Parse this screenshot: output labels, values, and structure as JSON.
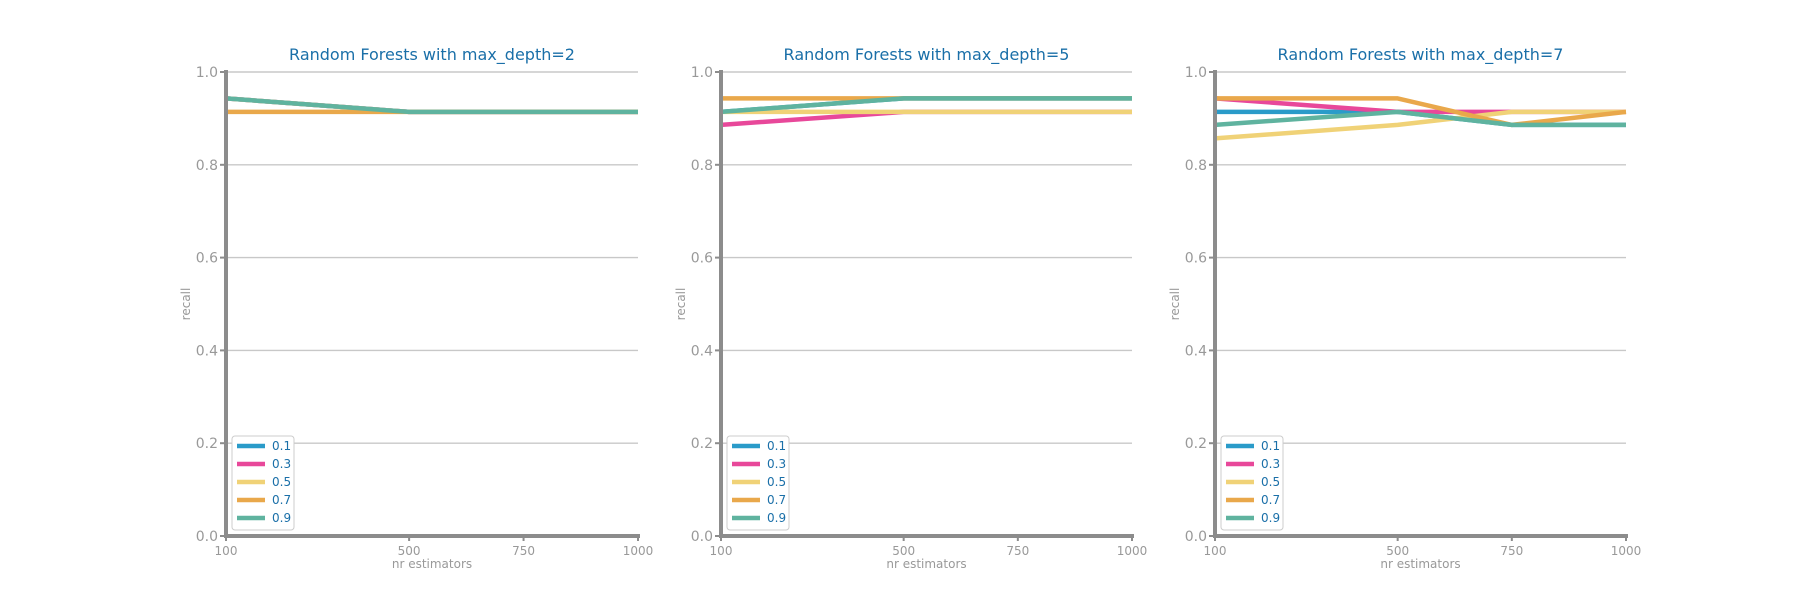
{
  "chart_data": [
    {
      "type": "line",
      "title": "Random Forests with max_depth=2",
      "xlabel": "nr estimators",
      "ylabel": "recall",
      "x": [
        100,
        500,
        750,
        1000
      ],
      "xlim": [
        100,
        1000
      ],
      "ylim": [
        0.0,
        1.0
      ],
      "xticks": [
        "100",
        "500",
        "750",
        "1000"
      ],
      "yticks": [
        "0.0",
        "0.2",
        "0.4",
        "0.6",
        "0.8",
        "1.0"
      ],
      "grid": "horizontal",
      "legend_position": "lower-left",
      "series": [
        {
          "name": "0.1",
          "color": "#2a9bc9",
          "values": [
            0.943,
            0.914,
            0.914,
            0.914
          ]
        },
        {
          "name": "0.3",
          "color": "#e8489a",
          "values": [
            0.943,
            0.914,
            0.914,
            0.914
          ]
        },
        {
          "name": "0.5",
          "color": "#f0d277",
          "values": [
            0.943,
            0.914,
            0.914,
            0.914
          ]
        },
        {
          "name": "0.7",
          "color": "#e9a84b",
          "values": [
            0.914,
            0.914,
            0.914,
            0.914
          ]
        },
        {
          "name": "0.9",
          "color": "#5fb39f",
          "values": [
            0.943,
            0.914,
            0.914,
            0.914
          ]
        }
      ]
    },
    {
      "type": "line",
      "title": "Random Forests with max_depth=5",
      "xlabel": "nr estimators",
      "ylabel": "recall",
      "x": [
        100,
        500,
        750,
        1000
      ],
      "xlim": [
        100,
        1000
      ],
      "ylim": [
        0.0,
        1.0
      ],
      "xticks": [
        "100",
        "500",
        "750",
        "1000"
      ],
      "yticks": [
        "0.0",
        "0.2",
        "0.4",
        "0.6",
        "0.8",
        "1.0"
      ],
      "grid": "horizontal",
      "legend_position": "lower-left",
      "series": [
        {
          "name": "0.1",
          "color": "#2a9bc9",
          "values": [
            0.914,
            0.943,
            0.943,
            0.943
          ]
        },
        {
          "name": "0.3",
          "color": "#e8489a",
          "values": [
            0.886,
            0.914,
            0.914,
            0.914
          ]
        },
        {
          "name": "0.5",
          "color": "#f0d277",
          "values": [
            0.914,
            0.914,
            0.914,
            0.914
          ]
        },
        {
          "name": "0.7",
          "color": "#e9a84b",
          "values": [
            0.943,
            0.943,
            0.943,
            0.943
          ]
        },
        {
          "name": "0.9",
          "color": "#5fb39f",
          "values": [
            0.914,
            0.943,
            0.943,
            0.943
          ]
        }
      ]
    },
    {
      "type": "line",
      "title": "Random Forests with max_depth=7",
      "xlabel": "nr estimators",
      "ylabel": "recall",
      "x": [
        100,
        500,
        750,
        1000
      ],
      "xlim": [
        100,
        1000
      ],
      "ylim": [
        0.0,
        1.0
      ],
      "xticks": [
        "100",
        "500",
        "750",
        "1000"
      ],
      "yticks": [
        "0.0",
        "0.2",
        "0.4",
        "0.6",
        "0.8",
        "1.0"
      ],
      "grid": "horizontal",
      "legend_position": "lower-left",
      "series": [
        {
          "name": "0.1",
          "color": "#2a9bc9",
          "values": [
            0.914,
            0.914,
            0.886,
            0.886
          ]
        },
        {
          "name": "0.3",
          "color": "#e8489a",
          "values": [
            0.943,
            0.914,
            0.914,
            0.914
          ]
        },
        {
          "name": "0.5",
          "color": "#f0d277",
          "values": [
            0.857,
            0.886,
            0.914,
            0.914
          ]
        },
        {
          "name": "0.7",
          "color": "#e9a84b",
          "values": [
            0.943,
            0.943,
            0.886,
            0.914
          ]
        },
        {
          "name": "0.9",
          "color": "#5fb39f",
          "values": [
            0.886,
            0.914,
            0.886,
            0.886
          ]
        }
      ]
    }
  ]
}
